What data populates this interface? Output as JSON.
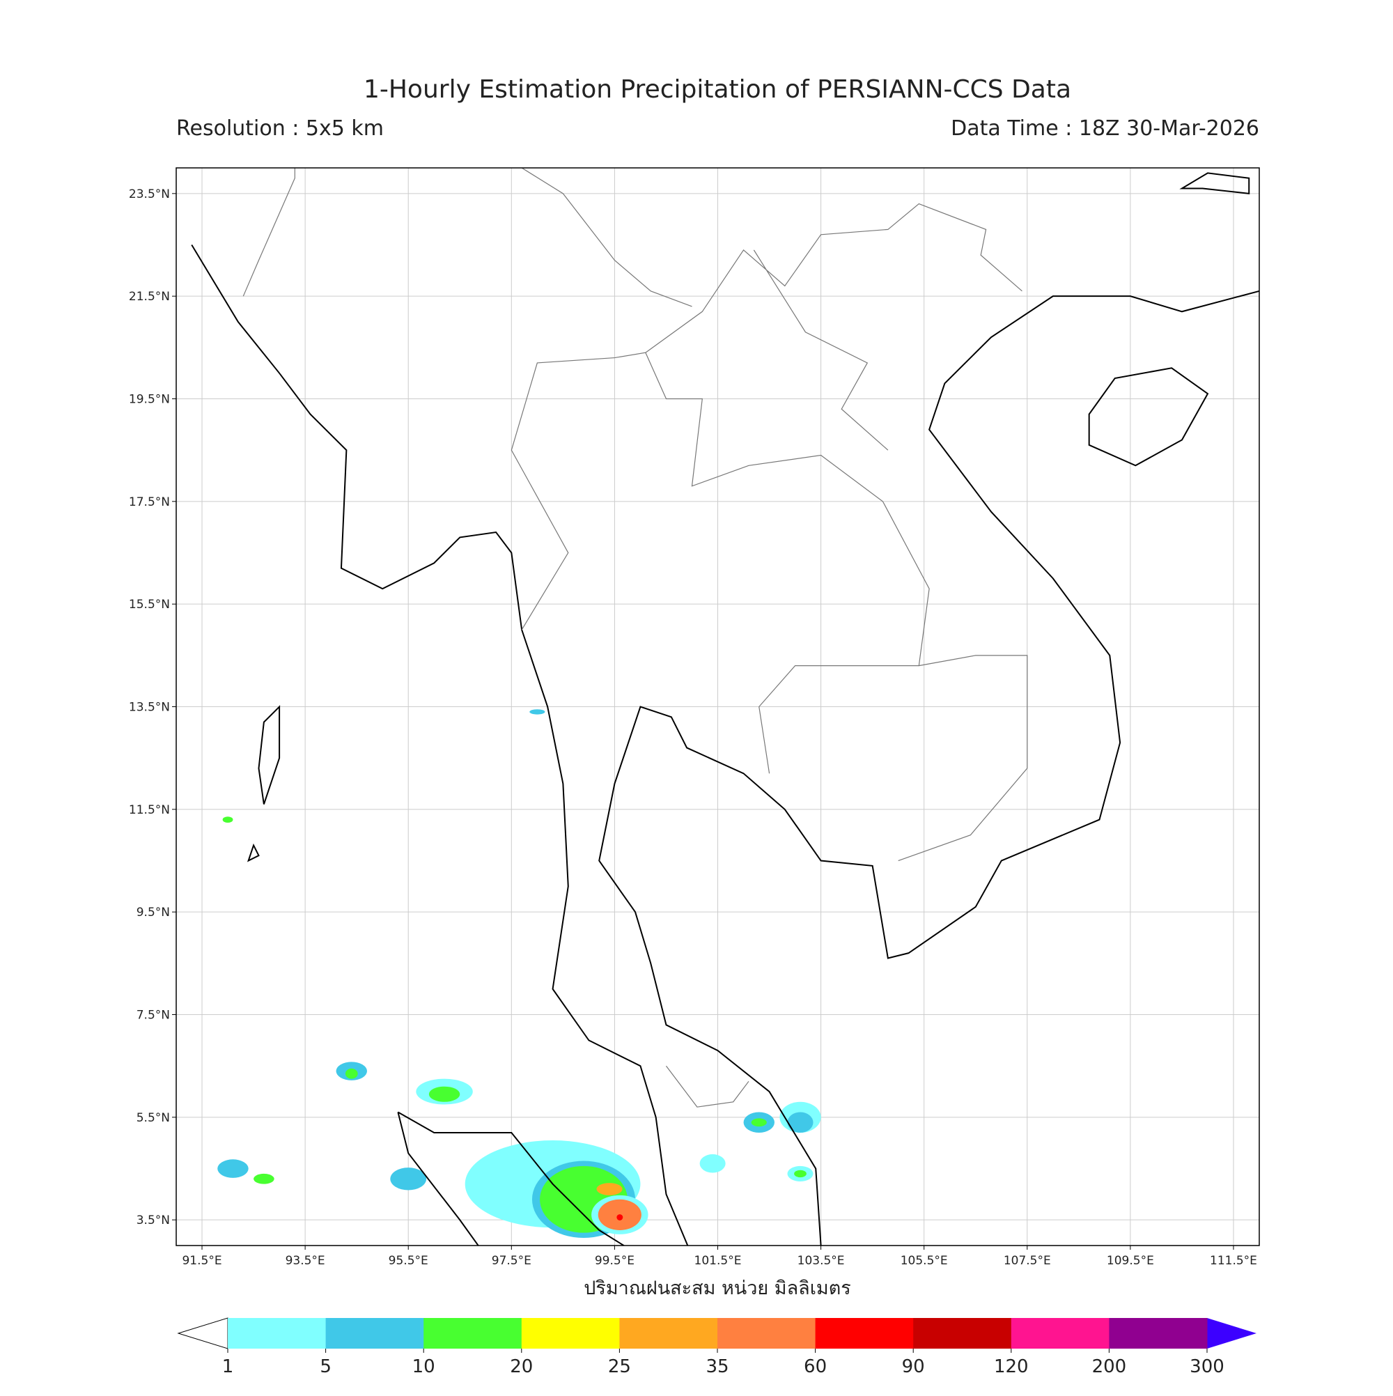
{
  "map": {
    "title": "1-Hourly Estimation Precipitation of PERSIANN-CCS Data",
    "resolution": "Resolution : 5x5 km",
    "data_time": "Data Time : 18Z 30-Mar-2026",
    "xlabel": "ปริมาณฝนสะสม หน่วย มิลลิเมตร",
    "xlim": [
      91,
      112
    ],
    "ylim": [
      3,
      24
    ],
    "xticks": [
      {
        "value": 91.5,
        "label": "91.5°E"
      },
      {
        "value": 93.5,
        "label": "93.5°E"
      },
      {
        "value": 95.5,
        "label": "95.5°E"
      },
      {
        "value": 97.5,
        "label": "97.5°E"
      },
      {
        "value": 99.5,
        "label": "99.5°E"
      },
      {
        "value": 101.5,
        "label": "101.5°E"
      },
      {
        "value": 103.5,
        "label": "103.5°E"
      },
      {
        "value": 105.5,
        "label": "105.5°E"
      },
      {
        "value": 107.5,
        "label": "107.5°E"
      },
      {
        "value": 109.5,
        "label": "109.5°E"
      },
      {
        "value": 111.5,
        "label": "111.5°E"
      }
    ],
    "yticks": [
      {
        "value": 23.5,
        "label": "23.5°N"
      },
      {
        "value": 21.5,
        "label": "21.5°N"
      },
      {
        "value": 19.5,
        "label": "19.5°N"
      },
      {
        "value": 17.5,
        "label": "17.5°N"
      },
      {
        "value": 15.5,
        "label": "15.5°N"
      },
      {
        "value": 13.5,
        "label": "13.5°N"
      },
      {
        "value": 11.5,
        "label": "11.5°N"
      },
      {
        "value": 9.5,
        "label": "9.5°N"
      },
      {
        "value": 7.5,
        "label": "7.5°N"
      },
      {
        "value": 5.5,
        "label": "5.5°N"
      },
      {
        "value": 3.5,
        "label": "3.5°N"
      }
    ],
    "grid": true,
    "colorbar": {
      "ticks": [
        1,
        5,
        10,
        20,
        25,
        35,
        60,
        90,
        120,
        200,
        300
      ],
      "colors": [
        "#80ffff",
        "#40c8e8",
        "#48ff30",
        "#ffff00",
        "#ffa820",
        "#ff8040",
        "#ff0000",
        "#c80000",
        "#ff1490",
        "#900090"
      ],
      "under_color": "#ffffff",
      "over_color": "#3c00ff"
    }
  }
}
